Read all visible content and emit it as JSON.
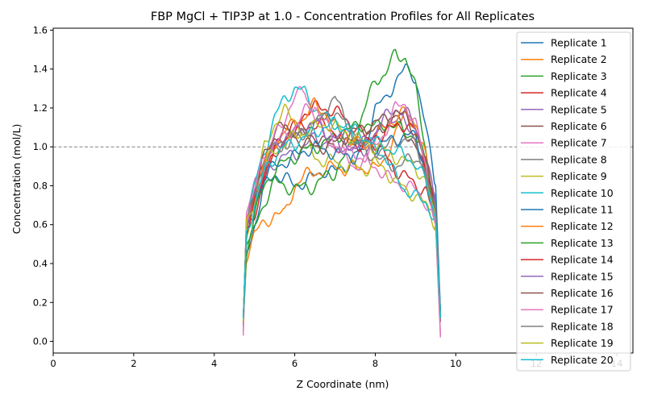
{
  "chart_data": {
    "type": "line",
    "title": "FBP MgCl + TIP3P at 1.0 - Concentration Profiles for All Replicates",
    "xlabel": "Z Coordinate (nm)",
    "ylabel": "Concentration (mol/L)",
    "xlim": [
      0,
      14.4
    ],
    "ylim": [
      -0.06,
      1.61
    ],
    "xticks": [
      0,
      2,
      4,
      6,
      8,
      10,
      12,
      14
    ],
    "xtick_labels": [
      "0",
      "2",
      "4",
      "6",
      "8",
      "10",
      "12",
      "14"
    ],
    "yticks": [
      0.0,
      0.2,
      0.4,
      0.6,
      0.8,
      1.0,
      1.2,
      1.4,
      1.6
    ],
    "ytick_labels": [
      "0.0",
      "0.2",
      "0.4",
      "0.6",
      "0.8",
      "1.0",
      "1.2",
      "1.4",
      "1.6"
    ],
    "reference_line": {
      "y": 1.0,
      "style": "dashed",
      "color": "#808080"
    },
    "grid": false,
    "legend_position": "top-right",
    "x": [
      4.72,
      4.8,
      5.0,
      5.25,
      5.5,
      5.75,
      6.0,
      6.25,
      6.5,
      6.75,
      7.0,
      7.25,
      7.5,
      7.75,
      8.0,
      8.25,
      8.5,
      8.75,
      9.0,
      9.25,
      9.5,
      9.62
    ],
    "series": [
      {
        "name": "Replicate 1",
        "color": "#1f77b4",
        "values": [
          0.08,
          0.45,
          0.6,
          0.8,
          0.86,
          0.84,
          0.8,
          0.82,
          0.85,
          0.88,
          0.87,
          0.9,
          0.95,
          1.02,
          1.2,
          1.24,
          1.34,
          1.4,
          1.36,
          1.1,
          0.8,
          0.15
        ]
      },
      {
        "name": "Replicate 2",
        "color": "#ff7f0e",
        "values": [
          0.1,
          0.44,
          0.56,
          0.6,
          0.66,
          0.65,
          0.8,
          0.85,
          0.88,
          0.86,
          0.92,
          0.87,
          0.9,
          0.89,
          0.88,
          0.95,
          1.05,
          1.2,
          1.1,
          0.9,
          0.65,
          0.12
        ]
      },
      {
        "name": "Replicate 3",
        "color": "#2ca02c",
        "values": [
          0.1,
          0.45,
          0.58,
          0.72,
          0.82,
          0.8,
          0.78,
          0.8,
          0.79,
          0.85,
          0.87,
          0.95,
          1.05,
          1.2,
          1.35,
          1.37,
          1.48,
          1.46,
          1.3,
          1.0,
          0.6,
          0.12
        ]
      },
      {
        "name": "Replicate 4",
        "color": "#d62728",
        "values": [
          0.1,
          0.55,
          0.65,
          0.85,
          0.95,
          1.05,
          1.1,
          1.18,
          1.2,
          1.2,
          1.18,
          1.15,
          1.1,
          1.05,
          1.02,
          0.95,
          0.88,
          0.85,
          0.8,
          0.78,
          0.65,
          0.14
        ]
      },
      {
        "name": "Replicate 5",
        "color": "#9467bd",
        "values": [
          0.1,
          0.55,
          0.7,
          0.85,
          0.92,
          0.95,
          0.96,
          1.0,
          1.05,
          1.02,
          1.03,
          1.0,
          0.98,
          0.98,
          1.05,
          1.12,
          1.15,
          1.12,
          1.05,
          0.85,
          0.65,
          0.12
        ]
      },
      {
        "name": "Replicate 6",
        "color": "#8c564b",
        "values": [
          0.08,
          0.6,
          0.75,
          0.95,
          1.08,
          1.1,
          1.08,
          1.05,
          1.06,
          1.02,
          1.0,
          1.02,
          1.03,
          1.05,
          1.08,
          1.12,
          1.15,
          1.08,
          1.0,
          0.85,
          0.6,
          0.1
        ]
      },
      {
        "name": "Replicate 7",
        "color": "#e377c2",
        "values": [
          0.03,
          0.65,
          0.8,
          0.95,
          1.05,
          1.15,
          1.25,
          1.3,
          1.15,
          1.05,
          1.0,
          0.95,
          0.9,
          0.92,
          0.9,
          0.85,
          0.82,
          0.8,
          0.78,
          0.72,
          0.6,
          0.02
        ]
      },
      {
        "name": "Replicate 8",
        "color": "#7f7f7f",
        "values": [
          0.1,
          0.6,
          0.72,
          0.9,
          1.0,
          1.02,
          1.05,
          1.08,
          1.12,
          1.18,
          1.25,
          1.15,
          1.05,
          0.98,
          0.95,
          0.92,
          0.9,
          0.92,
          0.95,
          0.9,
          0.65,
          0.12
        ]
      },
      {
        "name": "Replicate 9",
        "color": "#bcbd22",
        "values": [
          0.1,
          0.55,
          0.75,
          1.0,
          1.12,
          1.18,
          1.15,
          1.05,
          0.95,
          0.92,
          0.93,
          0.9,
          0.9,
          0.88,
          0.92,
          0.88,
          0.82,
          0.78,
          0.75,
          0.7,
          0.6,
          0.12
        ]
      },
      {
        "name": "Replicate 10",
        "color": "#17becf",
        "values": [
          0.1,
          0.6,
          0.8,
          0.98,
          1.15,
          1.25,
          1.3,
          1.28,
          1.2,
          1.15,
          1.12,
          1.1,
          1.05,
          1.02,
          1.0,
          0.95,
          0.85,
          0.78,
          0.74,
          0.72,
          0.62,
          0.12
        ]
      },
      {
        "name": "Replicate 11",
        "color": "#1f77b4",
        "values": [
          0.12,
          0.55,
          0.7,
          0.85,
          0.9,
          0.92,
          0.95,
          0.98,
          1.0,
          0.98,
          0.97,
          0.95,
          0.95,
          0.98,
          1.0,
          1.02,
          1.04,
          1.06,
          1.05,
          0.9,
          0.7,
          0.15
        ]
      },
      {
        "name": "Replicate 12",
        "color": "#ff7f0e",
        "values": [
          0.1,
          0.6,
          0.75,
          0.92,
          1.02,
          1.08,
          1.12,
          1.15,
          1.22,
          1.18,
          1.1,
          1.05,
          1.02,
          1.0,
          1.05,
          1.1,
          1.15,
          1.18,
          1.12,
          0.95,
          0.65,
          0.12
        ]
      },
      {
        "name": "Replicate 13",
        "color": "#2ca02c",
        "values": [
          0.12,
          0.5,
          0.65,
          0.8,
          0.88,
          0.92,
          0.95,
          0.98,
          1.0,
          1.02,
          1.05,
          1.08,
          1.1,
          1.12,
          1.1,
          1.12,
          1.1,
          1.08,
          1.05,
          0.92,
          0.7,
          0.12
        ]
      },
      {
        "name": "Replicate 14",
        "color": "#d62728",
        "values": [
          0.1,
          0.55,
          0.7,
          0.88,
          0.98,
          1.05,
          1.08,
          1.1,
          1.12,
          1.1,
          1.08,
          1.05,
          1.02,
          1.0,
          1.05,
          1.08,
          1.1,
          1.12,
          1.08,
          0.92,
          0.68,
          0.12
        ]
      },
      {
        "name": "Replicate 15",
        "color": "#9467bd",
        "values": [
          0.1,
          0.58,
          0.75,
          0.9,
          1.0,
          1.05,
          1.08,
          1.1,
          1.12,
          1.08,
          1.05,
          1.02,
          1.0,
          1.02,
          1.08,
          1.15,
          1.2,
          1.18,
          1.1,
          0.95,
          0.7,
          0.12
        ]
      },
      {
        "name": "Replicate 16",
        "color": "#8c564b",
        "values": [
          0.1,
          0.62,
          0.78,
          0.95,
          1.05,
          1.08,
          1.05,
          1.02,
          1.0,
          1.0,
          1.02,
          1.05,
          1.08,
          1.1,
          1.12,
          1.15,
          1.18,
          1.15,
          1.08,
          0.92,
          0.68,
          0.12
        ]
      },
      {
        "name": "Replicate 17",
        "color": "#e377c2",
        "values": [
          0.05,
          0.62,
          0.78,
          0.95,
          1.02,
          1.05,
          1.1,
          1.18,
          1.22,
          1.12,
          1.02,
          0.98,
          0.95,
          0.95,
          1.0,
          1.08,
          1.2,
          1.22,
          1.12,
          0.9,
          0.6,
          0.03
        ]
      },
      {
        "name": "Replicate 18",
        "color": "#7f7f7f",
        "values": [
          0.1,
          0.6,
          0.75,
          0.92,
          1.0,
          1.02,
          1.05,
          1.08,
          1.12,
          1.15,
          1.18,
          1.12,
          1.05,
          1.0,
          0.98,
          1.0,
          1.02,
          1.05,
          1.0,
          0.88,
          0.66,
          0.12
        ]
      },
      {
        "name": "Replicate 19",
        "color": "#bcbd22",
        "values": [
          0.1,
          0.58,
          0.72,
          0.9,
          0.98,
          1.02,
          1.05,
          1.08,
          1.1,
          1.12,
          1.1,
          1.08,
          1.05,
          1.02,
          1.0,
          0.98,
          0.95,
          0.92,
          0.9,
          0.82,
          0.62,
          0.12
        ]
      },
      {
        "name": "Replicate 20",
        "color": "#17becf",
        "values": [
          0.12,
          0.56,
          0.7,
          0.88,
          0.95,
          1.0,
          1.02,
          1.05,
          1.08,
          1.1,
          1.12,
          1.1,
          1.08,
          1.05,
          1.02,
          1.0,
          0.98,
          0.95,
          0.92,
          0.82,
          0.64,
          0.12
        ]
      }
    ]
  }
}
